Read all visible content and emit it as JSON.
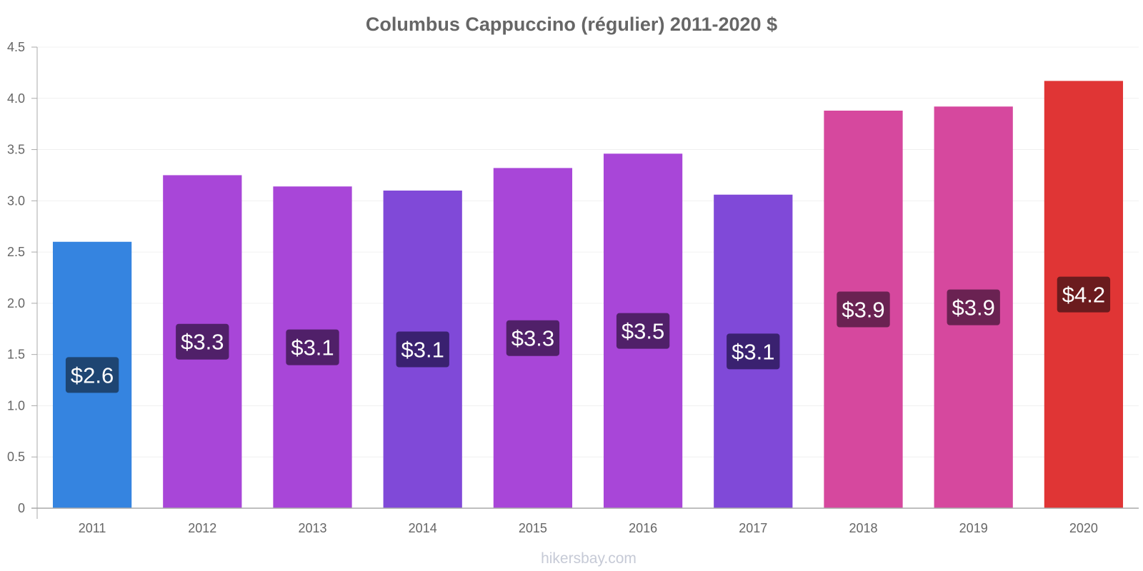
{
  "chart_data": {
    "type": "bar",
    "title": "Columbus Cappuccino (régulier) 2011-2020 $",
    "categories": [
      "2011",
      "2012",
      "2013",
      "2014",
      "2015",
      "2016",
      "2017",
      "2018",
      "2019",
      "2020"
    ],
    "values": [
      2.6,
      3.25,
      3.14,
      3.1,
      3.32,
      3.46,
      3.06,
      3.88,
      3.92,
      4.17
    ],
    "value_labels": [
      "$2.6",
      "$3.3",
      "$3.1",
      "$3.1",
      "$3.3",
      "$3.5",
      "$3.1",
      "$3.9",
      "$3.9",
      "$4.2"
    ],
    "bar_colors": [
      "#3584e0",
      "#a846d8",
      "#a846d8",
      "#8049d8",
      "#a846d8",
      "#a846d8",
      "#8049d8",
      "#d6489e",
      "#d6489e",
      "#e03535"
    ],
    "label_bg_colors": [
      "#1e4572",
      "#502069",
      "#502069",
      "#3a2170",
      "#502069",
      "#502069",
      "#3a2170",
      "#6a2252",
      "#6a2252",
      "#6b1b1e"
    ],
    "y_ticks": [
      "0",
      "0.5",
      "1.0",
      "1.5",
      "2.0",
      "2.5",
      "3.0",
      "3.5",
      "4.0",
      "4.5"
    ],
    "ylim": [
      0,
      4.5
    ],
    "grid": true,
    "xlabel": "",
    "ylabel": ""
  },
  "watermark": "hikersbay.com"
}
